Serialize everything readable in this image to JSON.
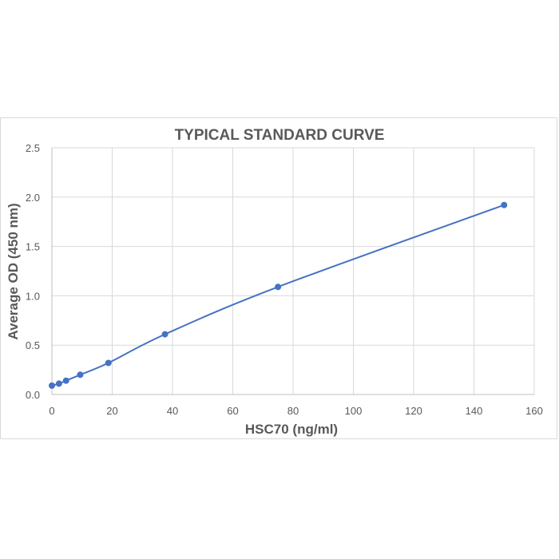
{
  "chart_data": {
    "type": "scatter",
    "title": "TYPICAL STANDARD CURVE",
    "xlabel": "HSC70 (ng/ml)",
    "ylabel": "Average OD (450 nm)",
    "xlim": [
      0,
      160
    ],
    "ylim": [
      0,
      2.5
    ],
    "x_ticks": [
      0,
      20,
      40,
      60,
      80,
      100,
      120,
      140,
      160
    ],
    "y_ticks": [
      0,
      0.5,
      1.0,
      1.5,
      2.0,
      2.5
    ],
    "x_tick_labels": [
      "0",
      "20",
      "40",
      "60",
      "80",
      "100",
      "120",
      "140",
      "160"
    ],
    "y_tick_labels": [
      "0.0",
      "0.5",
      "1.0",
      "1.5",
      "2.0",
      "2.5"
    ],
    "grid": true,
    "legend": "none",
    "smooth_line": true,
    "series": [
      {
        "x": [
          0,
          2.34,
          4.69,
          9.38,
          18.75,
          37.5,
          75,
          150
        ],
        "y": [
          0.09,
          0.11,
          0.14,
          0.2,
          0.32,
          0.61,
          1.09,
          1.92
        ],
        "color": "#4472c4"
      }
    ]
  }
}
